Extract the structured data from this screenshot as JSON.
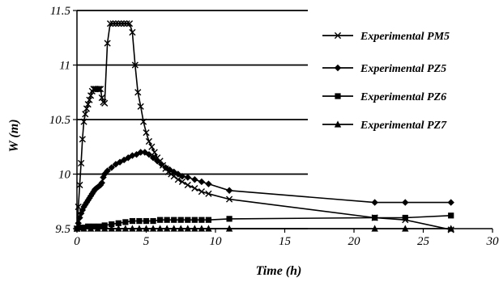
{
  "chart_data": {
    "type": "line",
    "xlabel": "Time  (h)",
    "ylabel": "W  (m)",
    "xlim": [
      0,
      30
    ],
    "ylim": [
      9.5,
      11.5
    ],
    "x_ticks": [
      "0",
      "5",
      "10",
      "15",
      "20",
      "25",
      "30"
    ],
    "y_ticks": [
      "9.5",
      "10",
      "10.5",
      "11",
      "11.5"
    ],
    "grid": "horizontal",
    "legend": "right",
    "series": [
      {
        "name": "Experimental  PM5",
        "marker": "x",
        "x": [
          0.0,
          0.1,
          0.2,
          0.3,
          0.4,
          0.5,
          0.6,
          0.7,
          0.8,
          0.9,
          1.0,
          1.1,
          1.2,
          1.3,
          1.4,
          1.5,
          1.6,
          1.7,
          1.8,
          1.9,
          2.0,
          2.2,
          2.4,
          2.6,
          2.8,
          3.0,
          3.2,
          3.4,
          3.6,
          3.8,
          4.0,
          4.2,
          4.4,
          4.6,
          4.8,
          5.0,
          5.2,
          5.4,
          5.6,
          5.8,
          6.0,
          6.2,
          6.4,
          6.6,
          6.8,
          7.0,
          7.3,
          7.6,
          8.0,
          8.5,
          9.0,
          9.5,
          11.0,
          21.5,
          23.7,
          27.0
        ],
        "values": [
          9.5,
          9.7,
          9.9,
          10.1,
          10.32,
          10.48,
          10.55,
          10.6,
          10.64,
          10.68,
          10.72,
          10.76,
          10.78,
          10.78,
          10.78,
          10.78,
          10.78,
          10.78,
          10.7,
          10.66,
          10.65,
          11.2,
          11.38,
          11.38,
          11.38,
          11.38,
          11.38,
          11.38,
          11.38,
          11.38,
          11.3,
          11.0,
          10.75,
          10.62,
          10.48,
          10.38,
          10.3,
          10.25,
          10.2,
          10.15,
          10.12,
          10.08,
          10.05,
          10.02,
          10.0,
          9.98,
          9.95,
          9.93,
          9.9,
          9.87,
          9.84,
          9.82,
          9.77,
          9.6,
          9.58,
          9.49
        ]
      },
      {
        "name": "Experimental  PZ5",
        "marker": "diamond",
        "x": [
          0.0,
          0.1,
          0.2,
          0.3,
          0.4,
          0.5,
          0.6,
          0.7,
          0.8,
          0.9,
          1.0,
          1.1,
          1.2,
          1.3,
          1.4,
          1.5,
          1.6,
          1.7,
          1.8,
          1.9,
          2.0,
          2.2,
          2.5,
          2.8,
          3.1,
          3.4,
          3.7,
          4.0,
          4.3,
          4.6,
          4.9,
          5.2,
          5.5,
          5.8,
          6.1,
          6.4,
          6.7,
          7.0,
          7.3,
          7.6,
          8.0,
          8.5,
          9.0,
          9.5,
          11.0,
          21.5,
          23.7,
          27.0
        ],
        "values": [
          9.5,
          9.55,
          9.6,
          9.64,
          9.67,
          9.7,
          9.72,
          9.74,
          9.76,
          9.78,
          9.8,
          9.82,
          9.84,
          9.86,
          9.87,
          9.88,
          9.89,
          9.9,
          9.92,
          9.97,
          10.0,
          10.03,
          10.06,
          10.09,
          10.11,
          10.13,
          10.15,
          10.17,
          10.18,
          10.2,
          10.2,
          10.18,
          10.15,
          10.12,
          10.09,
          10.06,
          10.04,
          10.02,
          10.0,
          9.98,
          9.97,
          9.95,
          9.93,
          9.91,
          9.85,
          9.74,
          9.74,
          9.74
        ]
      },
      {
        "name": "Experimental  PZ6",
        "marker": "square",
        "x": [
          0.0,
          0.4,
          0.8,
          1.2,
          1.6,
          2.0,
          2.5,
          3.0,
          3.5,
          4.0,
          4.5,
          5.0,
          5.5,
          6.0,
          6.5,
          7.0,
          7.5,
          8.0,
          8.5,
          9.0,
          9.5,
          11.0,
          21.5,
          23.7,
          27.0
        ],
        "values": [
          9.5,
          9.51,
          9.52,
          9.52,
          9.52,
          9.53,
          9.54,
          9.55,
          9.56,
          9.57,
          9.57,
          9.57,
          9.57,
          9.58,
          9.58,
          9.58,
          9.58,
          9.58,
          9.58,
          9.58,
          9.58,
          9.59,
          9.6,
          9.6,
          9.62
        ]
      },
      {
        "name": "Experimental  PZ7",
        "marker": "triangle",
        "x": [
          0.0,
          0.5,
          1.0,
          1.5,
          2.0,
          2.5,
          3.0,
          3.5,
          4.0,
          4.5,
          5.0,
          5.5,
          6.0,
          6.5,
          7.0,
          7.5,
          8.0,
          8.5,
          9.0,
          9.5,
          11.0,
          21.5,
          23.7,
          27.0
        ],
        "values": [
          9.5,
          9.5,
          9.5,
          9.5,
          9.5,
          9.5,
          9.5,
          9.5,
          9.5,
          9.5,
          9.5,
          9.5,
          9.5,
          9.5,
          9.5,
          9.5,
          9.5,
          9.5,
          9.5,
          9.5,
          9.5,
          9.5,
          9.5,
          9.5
        ]
      }
    ]
  }
}
